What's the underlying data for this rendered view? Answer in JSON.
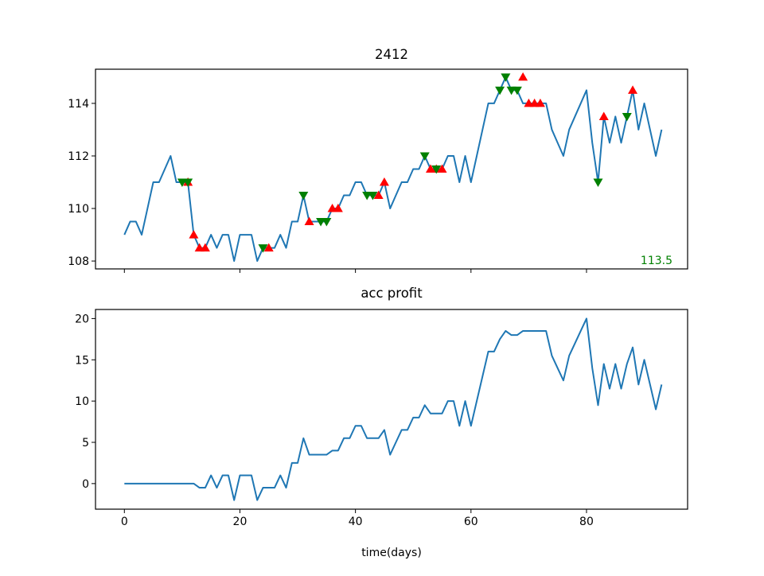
{
  "chart_data": [
    {
      "type": "line",
      "title": "2412",
      "xlabel": "",
      "ylabel": "",
      "xlim": [
        -5,
        97.5
      ],
      "ylim": [
        107.7,
        115.3
      ],
      "xticks": [
        0,
        20,
        40,
        60,
        80
      ],
      "yticks": [
        108,
        110,
        112,
        114
      ],
      "show_x_tick_labels": false,
      "grid": false,
      "line_color": "#1f77b4",
      "series": [
        {
          "x": [
            0,
            1,
            2,
            3,
            4,
            5,
            6,
            7,
            8,
            9,
            10,
            11,
            12,
            13,
            14,
            15,
            16,
            17,
            18,
            19,
            20,
            21,
            22,
            23,
            24,
            25,
            26,
            27,
            28,
            29,
            30,
            31,
            32,
            33,
            34,
            35,
            36,
            37,
            38,
            39,
            40,
            41,
            42,
            43,
            44,
            45,
            46,
            47,
            48,
            49,
            50,
            51,
            52,
            53,
            54,
            55,
            56,
            57,
            58,
            59,
            60,
            61,
            62,
            63,
            64,
            65,
            66,
            67,
            68,
            69,
            70,
            71,
            72,
            73,
            74,
            75,
            76,
            77,
            78,
            79,
            80,
            81,
            82,
            83,
            84,
            85,
            86,
            87,
            88,
            89,
            90,
            91,
            92,
            93
          ],
          "values": [
            109,
            109.5,
            109.5,
            109,
            110,
            111,
            111,
            111.5,
            112,
            111,
            111,
            111,
            109,
            108.5,
            108.5,
            109,
            108.5,
            109,
            109,
            108,
            109,
            109,
            109,
            108,
            108.5,
            108.5,
            108.5,
            109,
            108.5,
            109.5,
            109.5,
            110.5,
            109.5,
            109.5,
            109.5,
            109.5,
            110,
            110,
            110.5,
            110.5,
            111,
            111,
            110.5,
            110.5,
            110.5,
            111,
            110,
            110.5,
            111,
            111,
            111.5,
            111.5,
            112,
            111.5,
            111.5,
            111.5,
            112,
            112,
            111,
            112,
            111,
            112,
            113,
            114,
            114,
            114.5,
            115,
            114.5,
            114.5,
            114,
            114,
            114,
            114,
            114,
            113,
            112.5,
            112,
            113,
            113.5,
            114,
            114.5,
            112.5,
            111,
            113.5,
            112.5,
            113.5,
            112.5,
            113.5,
            114.5,
            113,
            114,
            113,
            112,
            113
          ]
        }
      ],
      "markers": [
        {
          "type": "sell",
          "symbol": "triangle-up",
          "color": "#ff0000",
          "x": [
            11,
            12,
            13,
            14,
            25,
            32,
            36,
            37,
            44,
            45,
            53,
            54,
            55,
            69,
            70,
            71,
            72,
            83,
            88
          ],
          "y": [
            111,
            109,
            108.5,
            108.5,
            108.5,
            109.5,
            110,
            110,
            110.5,
            111,
            111.5,
            111.5,
            111.5,
            115,
            114,
            114,
            114,
            113.5,
            114.5
          ]
        },
        {
          "type": "buy",
          "symbol": "triangle-down",
          "color": "#008000",
          "x": [
            10,
            11,
            24,
            31,
            34,
            35,
            42,
            43,
            52,
            54,
            65,
            66,
            67,
            68,
            82,
            87
          ],
          "y": [
            111,
            111,
            108.5,
            110.5,
            109.5,
            109.5,
            110.5,
            110.5,
            112,
            111.5,
            114.5,
            115,
            114.5,
            114.5,
            111,
            113.5
          ]
        }
      ],
      "annotation": {
        "text": "113.5",
        "color": "#008000",
        "position": "bottom-right"
      }
    },
    {
      "type": "line",
      "title": "acc profit",
      "xlabel": "time(days)",
      "ylabel": "",
      "xlim": [
        -5,
        97.5
      ],
      "ylim": [
        -3.1,
        21.1
      ],
      "xticks": [
        0,
        20,
        40,
        60,
        80
      ],
      "yticks": [
        0,
        5,
        10,
        15,
        20
      ],
      "grid": false,
      "line_color": "#1f77b4",
      "series": [
        {
          "x": [
            0,
            1,
            2,
            3,
            4,
            5,
            6,
            7,
            8,
            9,
            10,
            11,
            12,
            13,
            14,
            15,
            16,
            17,
            18,
            19,
            20,
            21,
            22,
            23,
            24,
            25,
            26,
            27,
            28,
            29,
            30,
            31,
            32,
            33,
            34,
            35,
            36,
            37,
            38,
            39,
            40,
            41,
            42,
            43,
            44,
            45,
            46,
            47,
            48,
            49,
            50,
            51,
            52,
            53,
            54,
            55,
            56,
            57,
            58,
            59,
            60,
            61,
            62,
            63,
            64,
            65,
            66,
            67,
            68,
            69,
            70,
            71,
            72,
            73,
            74,
            75,
            76,
            77,
            78,
            79,
            80,
            81,
            82,
            83,
            84,
            85,
            86,
            87,
            88,
            89,
            90,
            91,
            92,
            93
          ],
          "values": [
            0,
            0,
            0,
            0,
            0,
            0,
            0,
            0,
            0,
            0,
            0,
            0,
            0,
            -0.5,
            -0.5,
            1,
            -0.5,
            1,
            1,
            -2,
            1,
            1,
            1,
            -2,
            -0.5,
            -0.5,
            -0.5,
            1,
            -0.5,
            2.5,
            2.5,
            5.5,
            3.5,
            3.5,
            3.5,
            3.5,
            4,
            4,
            5.5,
            5.5,
            7,
            7,
            5.5,
            5.5,
            5.5,
            6.5,
            3.5,
            5,
            6.5,
            6.5,
            8,
            8,
            9.5,
            8.5,
            8.5,
            8.5,
            10,
            10,
            7,
            10,
            7,
            10,
            13,
            16,
            16,
            17.5,
            18.5,
            18,
            18,
            18.5,
            18.5,
            18.5,
            18.5,
            18.5,
            15.5,
            14,
            12.5,
            15.5,
            17,
            18.5,
            20,
            14,
            9.5,
            14.5,
            11.5,
            14.5,
            11.5,
            14.5,
            16.5,
            12,
            15,
            12,
            9,
            12
          ]
        }
      ]
    }
  ]
}
